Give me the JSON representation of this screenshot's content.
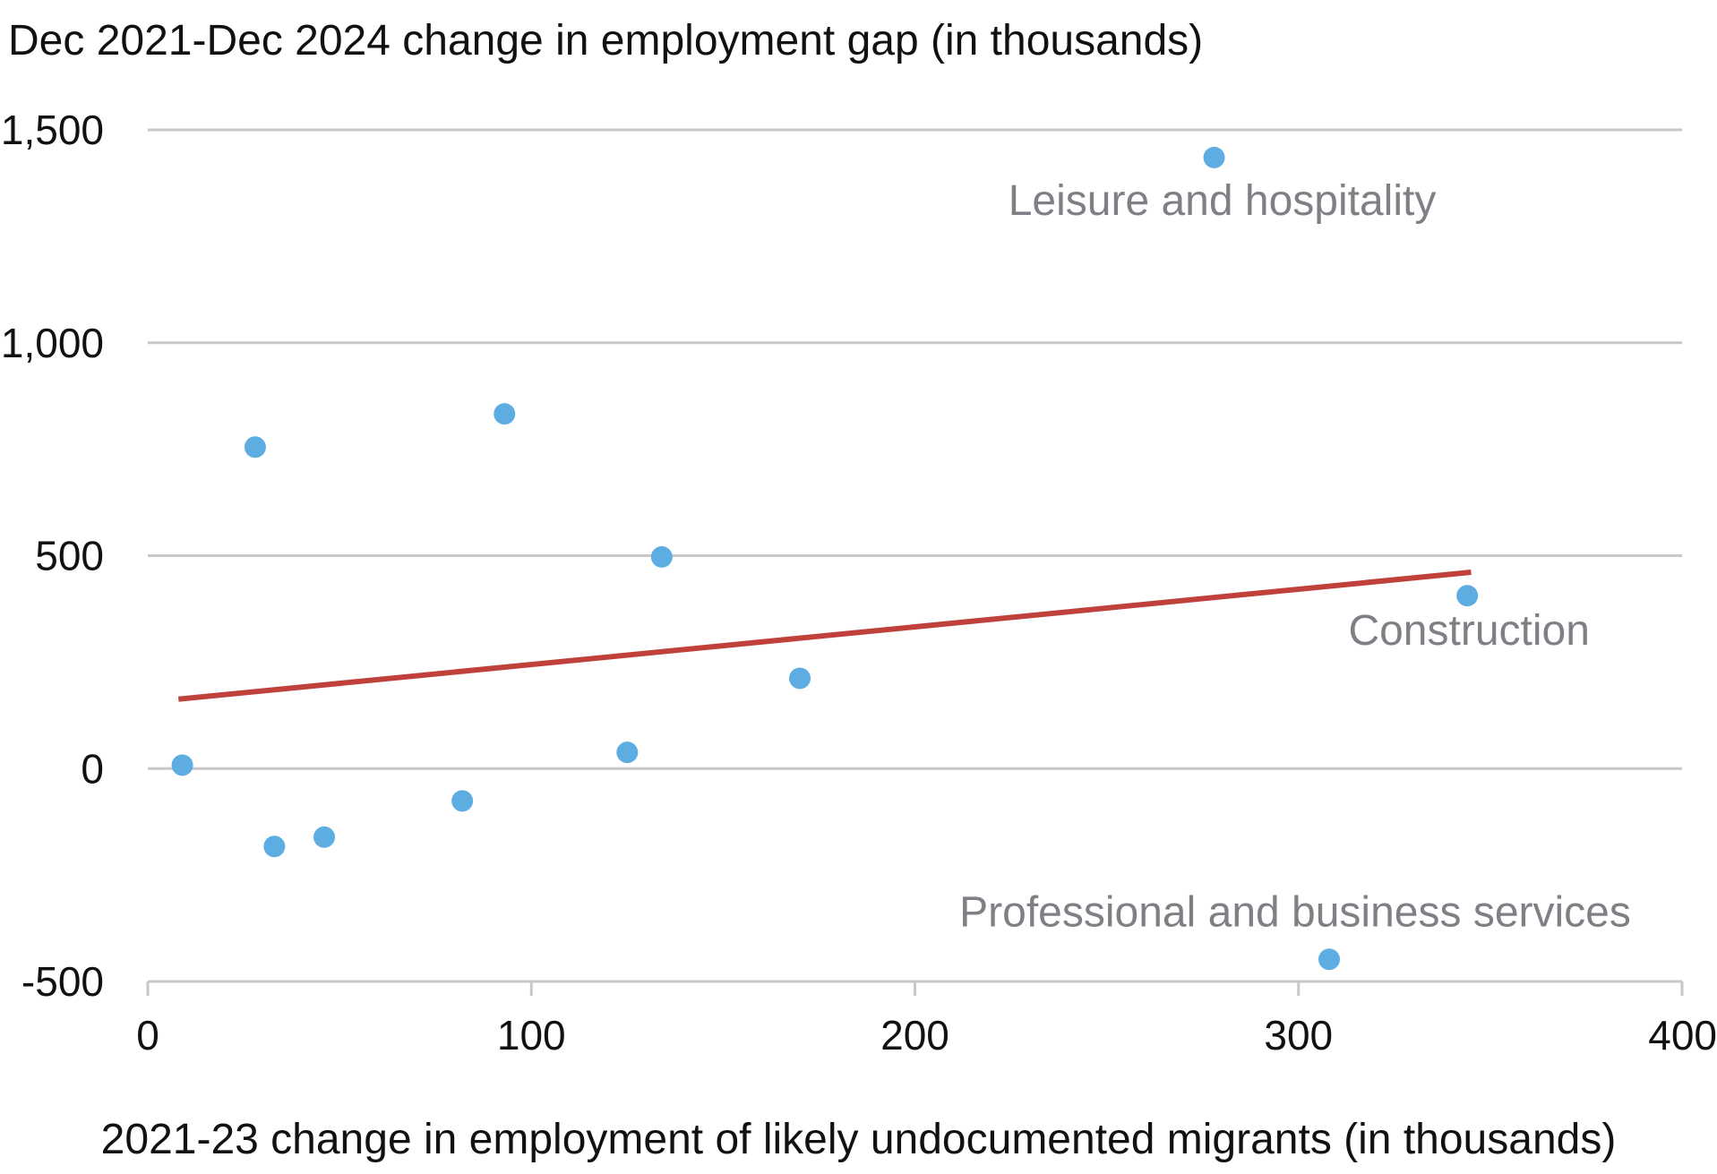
{
  "chart_data": {
    "type": "scatter",
    "title": "",
    "ylabel": "Dec 2021-Dec 2024 change in employment gap (in thousands)",
    "xlabel": "2021-23 change in employment of likely undocumented migrants (in thousands)",
    "xlim": [
      0,
      400
    ],
    "ylim": [
      -500,
      1500
    ],
    "x_ticks": [
      0,
      100,
      200,
      300,
      400
    ],
    "x_tick_labels": [
      "0",
      "100",
      "200",
      "300",
      "400"
    ],
    "y_ticks": [
      -500,
      0,
      500,
      1000,
      1500
    ],
    "y_tick_labels": [
      "-500",
      "0",
      "500",
      "1,000",
      "1,500"
    ],
    "grid": "horizontal",
    "colors": {
      "points": "#5dade2",
      "trendline": "#c0413b",
      "gridlines": "#c8c8cb",
      "annotations": "#7f7f86"
    },
    "points": [
      {
        "x": 9,
        "y": 8
      },
      {
        "x": 28,
        "y": 755
      },
      {
        "x": 33,
        "y": -183
      },
      {
        "x": 46,
        "y": -161
      },
      {
        "x": 82,
        "y": -76
      },
      {
        "x": 93,
        "y": 833
      },
      {
        "x": 125,
        "y": 38
      },
      {
        "x": 134,
        "y": 497
      },
      {
        "x": 170,
        "y": 212
      },
      {
        "x": 278,
        "y": 1435
      },
      {
        "x": 308,
        "y": -448
      },
      {
        "x": 344,
        "y": 406
      }
    ],
    "trendline": {
      "x": [
        8,
        345
      ],
      "y": [
        163,
        461
      ]
    },
    "annotations": [
      {
        "text": "Leisure and hospitality",
        "x": 278,
        "y": 1435
      },
      {
        "text": "Construction",
        "x": 344,
        "y": 406
      },
      {
        "text": "Professional and business services",
        "x": 308,
        "y": -448
      }
    ]
  }
}
